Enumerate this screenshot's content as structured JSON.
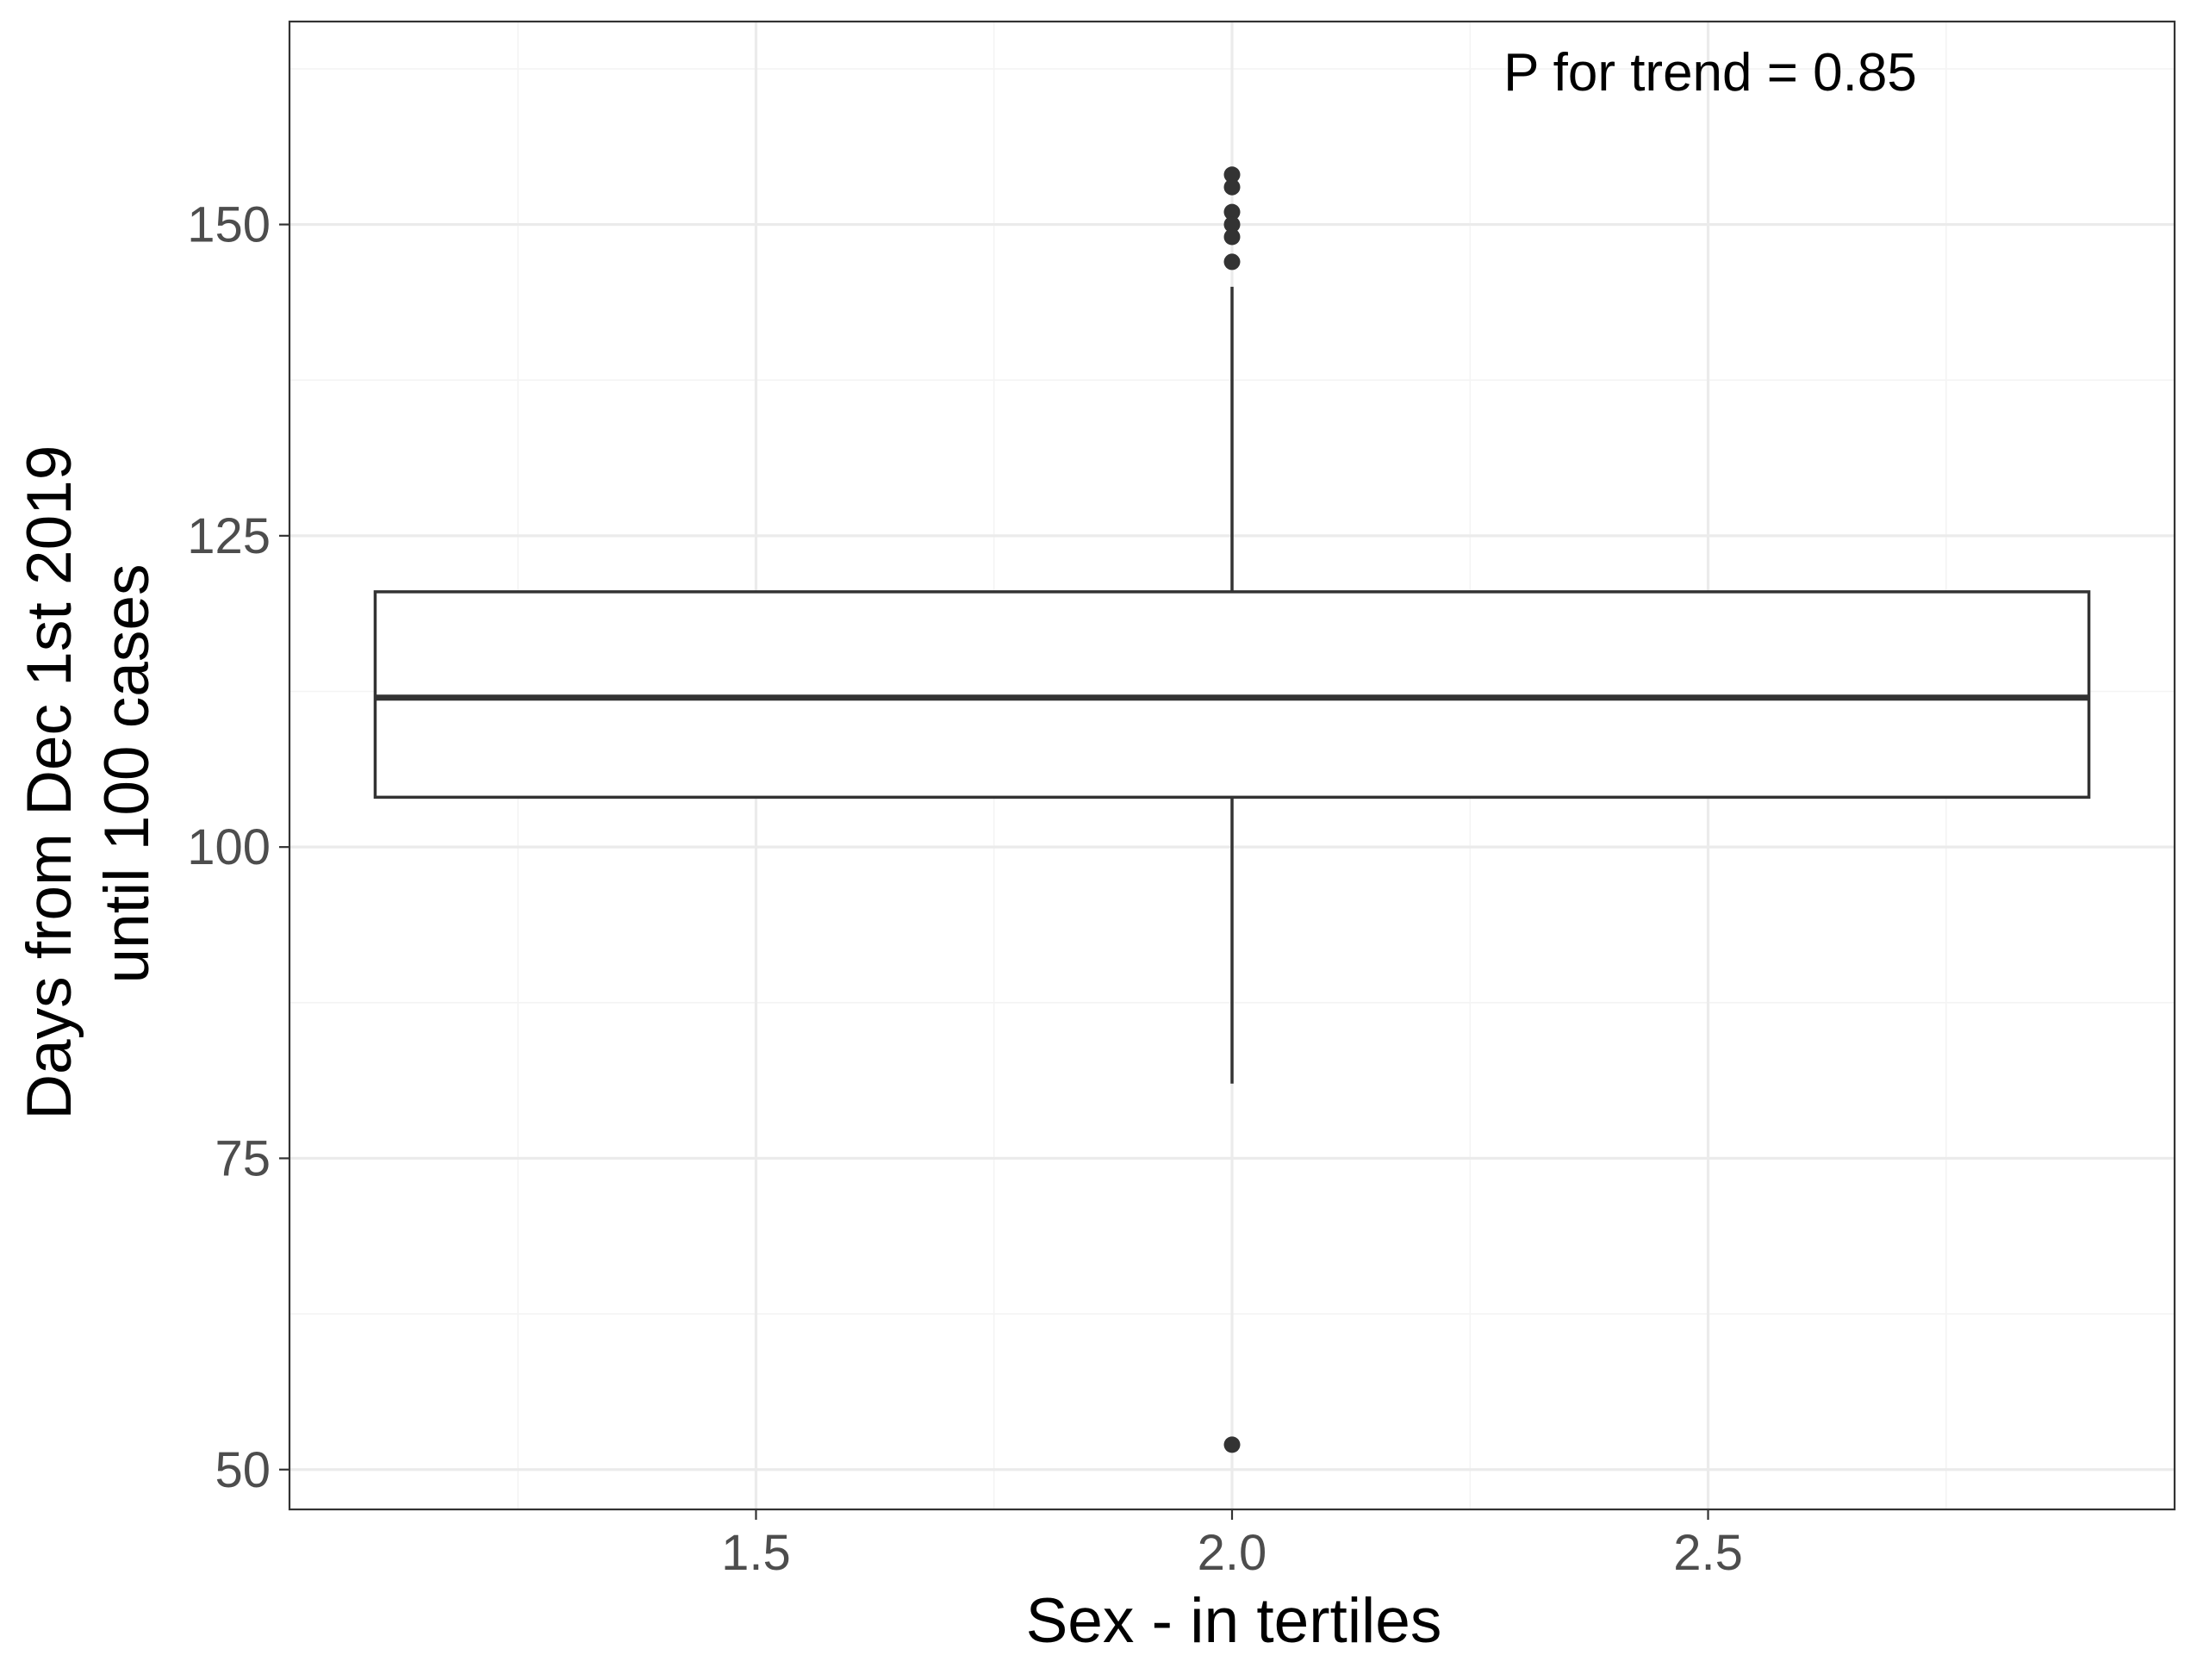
{
  "chart_data": {
    "type": "boxplot",
    "xlabel": "Sex - in tertiles",
    "ylabel_lines": [
      "Days from Dec 1st 2019",
      "until 100 cases"
    ],
    "annotation": "P for trend = 0.85",
    "xlim": [
      1.01,
      2.99
    ],
    "ylim": [
      46.8,
      166.3
    ],
    "x_ticks": [
      {
        "value": 1.5,
        "label": "1.5"
      },
      {
        "value": 2.0,
        "label": "2.0"
      },
      {
        "value": 2.5,
        "label": "2.5"
      }
    ],
    "x_minor_ticks": [
      1.25,
      1.75,
      2.25,
      2.75
    ],
    "y_ticks": [
      {
        "value": 50,
        "label": "50"
      },
      {
        "value": 75,
        "label": "75"
      },
      {
        "value": 100,
        "label": "100"
      },
      {
        "value": 125,
        "label": "125"
      },
      {
        "value": 150,
        "label": "150"
      }
    ],
    "y_minor_ticks": [
      62.5,
      87.5,
      112.5,
      137.5,
      162.5
    ],
    "box": {
      "x": 2.0,
      "x_from": 1.1,
      "x_to": 2.9,
      "whisker_low": 81,
      "q1": 104,
      "median": 112,
      "q3": 120.5,
      "whisker_high": 145
    },
    "outliers": [
      154,
      153,
      151,
      150,
      149,
      147,
      52
    ],
    "grid": true,
    "theme": "bw"
  },
  "colors": {
    "background": "#ffffff",
    "panel_border": "#333333",
    "grid_major": "#ebebeb",
    "grid_minor": "#f4f4f4",
    "box_line": "#333333",
    "point": "#333333",
    "tick_label": "#4d4d4d",
    "title": "#000000"
  }
}
